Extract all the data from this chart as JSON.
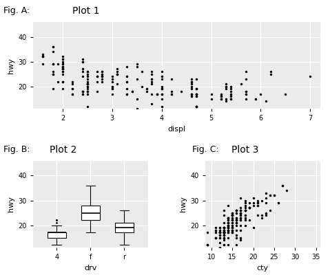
{
  "title_A": "Fig. A:",
  "title_B": "Fig. B:",
  "title_C": "Fig. C:",
  "plot1_title": "Plot 1",
  "plot2_title": "Plot 2",
  "plot3_title": "Plot 3",
  "plot1_xlabel": "displ",
  "plot1_ylabel": "hwy",
  "plot2_xlabel": "drv",
  "plot2_ylabel": "hwy",
  "plot3_xlabel": "cty",
  "plot3_ylabel": "hwy",
  "bg_color": "#EBEBEB",
  "grid_color": "white",
  "point_color": "black",
  "fig_label_fontsize": 9,
  "plot_title_fontsize": 10,
  "axis_label_fontsize": 8,
  "tick_fontsize": 7,
  "displ": [
    1.8,
    1.8,
    2.0,
    2.0,
    2.8,
    2.8,
    3.1,
    1.8,
    1.8,
    2.0,
    2.0,
    2.8,
    2.8,
    3.1,
    3.1,
    2.8,
    3.1,
    4.2,
    5.3,
    5.3,
    5.3,
    5.7,
    6.0,
    5.7,
    5.7,
    6.2,
    6.2,
    7.0,
    5.3,
    5.3,
    5.7,
    6.5,
    2.4,
    2.4,
    3.1,
    3.5,
    3.6,
    2.4,
    3.0,
    3.3,
    3.3,
    3.3,
    3.3,
    3.3,
    3.8,
    3.8,
    3.8,
    4.0,
    3.7,
    3.7,
    3.9,
    3.9,
    4.7,
    4.7,
    4.7,
    5.2,
    5.2,
    3.9,
    4.7,
    4.7,
    4.7,
    5.2,
    5.7,
    5.9,
    4.7,
    4.7,
    4.7,
    4.7,
    4.7,
    4.7,
    5.2,
    5.2,
    5.7,
    5.9,
    4.6,
    5.4,
    5.4,
    4.0,
    4.0,
    4.0,
    4.0,
    4.6,
    5.0,
    4.2,
    4.2,
    4.6,
    4.6,
    4.6,
    5.4,
    5.4,
    3.8,
    3.8,
    4.0,
    4.0,
    4.6,
    4.6,
    4.6,
    4.6,
    5.4,
    1.6,
    1.6,
    1.6,
    1.6,
    1.6,
    1.8,
    1.8,
    1.8,
    2.0,
    2.4,
    2.4,
    2.4,
    2.4,
    2.5,
    2.5,
    3.3,
    2.0,
    2.0,
    2.0,
    2.0,
    2.7,
    2.7,
    2.7,
    3.0,
    3.7,
    4.0,
    4.7,
    4.7,
    4.7,
    5.7,
    6.1,
    4.0,
    4.2,
    4.4,
    4.6,
    5.4,
    5.4,
    5.4,
    4.0,
    4.0,
    4.6,
    5.0,
    2.4,
    2.4,
    2.5,
    2.5,
    3.5,
    3.5,
    3.0,
    3.0,
    3.5,
    3.3,
    3.3,
    4.0,
    5.6,
    3.1,
    3.8,
    3.8,
    3.8,
    5.3,
    2.5,
    2.5,
    2.5,
    2.5,
    2.5,
    2.5,
    2.2,
    2.2,
    2.5,
    2.5,
    2.5,
    2.5,
    2.5,
    2.5,
    2.7,
    2.7,
    3.4,
    3.4,
    4.0,
    4.7,
    2.2,
    2.2,
    2.4,
    2.4,
    3.0,
    3.0,
    3.5,
    2.2,
    2.2,
    2.4,
    2.4,
    3.0,
    3.0,
    3.3,
    1.8,
    2.0,
    2.0,
    2.0,
    2.0,
    2.7,
    1.9,
    2.0,
    2.0,
    2.0,
    2.0,
    2.5,
    2.5,
    2.8,
    2.8,
    1.9,
    2.0,
    2.5,
    2.5,
    1.8,
    1.8,
    2.0,
    2.0,
    2.8,
    2.8,
    3.6
  ],
  "hwy": [
    29,
    29,
    31,
    30,
    26,
    26,
    27,
    26,
    25,
    28,
    27,
    25,
    25,
    25,
    25,
    24,
    25,
    23,
    20,
    15,
    20,
    17,
    17,
    26,
    23,
    26,
    25,
    24,
    19,
    14,
    15,
    17,
    27,
    30,
    26,
    29,
    26,
    24,
    24,
    22,
    22,
    24,
    24,
    17,
    22,
    21,
    23,
    23,
    19,
    18,
    17,
    17,
    19,
    19,
    12,
    17,
    15,
    17,
    17,
    12,
    17,
    16,
    18,
    15,
    16,
    12,
    17,
    17,
    16,
    12,
    15,
    16,
    17,
    15,
    17,
    17,
    18,
    17,
    19,
    17,
    19,
    19,
    17,
    17,
    17,
    16,
    16,
    17,
    15,
    17,
    26,
    25,
    26,
    24,
    21,
    22,
    23,
    22,
    20,
    33,
    32,
    32,
    29,
    32,
    34,
    36,
    36,
    29,
    26,
    27,
    30,
    31,
    26,
    26,
    28,
    26,
    29,
    28,
    27,
    24,
    24,
    24,
    22,
    19,
    20,
    17,
    12,
    19,
    18,
    14,
    15,
    18,
    18,
    20,
    19,
    15,
    16,
    12,
    17,
    17,
    15,
    17,
    17,
    12,
    9,
    11,
    15,
    17,
    23,
    23,
    19,
    17,
    19,
    21,
    21,
    13,
    17,
    23,
    21,
    18,
    17,
    19,
    21,
    23,
    25,
    21,
    19,
    21,
    18,
    20,
    21,
    21,
    21,
    22,
    18,
    18,
    18,
    24,
    23,
    22,
    17,
    18,
    18,
    20,
    20,
    28,
    19,
    17,
    18,
    18,
    19,
    19,
    17,
    29,
    27,
    31,
    32,
    27,
    26,
    29,
    28,
    22,
    22,
    22,
    22,
    24,
    24,
    24,
    22,
    19,
    18,
    20,
    19,
    25,
    25,
    26,
    23,
    22,
    20
  ],
  "drv_4_hwy": [
    19,
    14,
    15,
    17,
    19,
    14,
    15,
    17,
    17,
    12,
    17,
    15,
    17,
    17,
    12,
    17,
    15,
    17,
    17,
    12,
    15,
    16,
    17,
    15,
    17,
    17,
    18,
    15,
    16,
    12,
    17,
    17,
    16,
    12,
    15,
    16,
    17,
    15,
    17,
    17,
    18,
    17,
    19,
    17,
    19,
    19,
    17,
    17,
    17,
    16,
    16,
    17,
    15,
    17,
    17,
    16,
    18,
    15,
    17,
    22,
    21,
    22,
    20,
    19,
    18,
    17,
    17,
    19,
    19,
    12,
    17,
    15,
    17,
    17,
    15,
    17,
    17,
    16,
    12,
    15,
    16,
    17,
    15,
    17,
    17
  ],
  "drv_f_hwy": [
    29,
    29,
    31,
    30,
    26,
    26,
    27,
    26,
    25,
    28,
    27,
    25,
    25,
    25,
    25,
    24,
    25,
    23,
    27,
    30,
    26,
    29,
    26,
    24,
    24,
    22,
    22,
    24,
    24,
    26,
    25,
    26,
    24,
    21,
    22,
    23,
    22,
    33,
    32,
    32,
    29,
    32,
    34,
    36,
    36,
    29,
    26,
    27,
    30,
    31,
    26,
    26,
    28,
    26,
    29,
    28,
    27,
    24,
    24,
    24,
    22,
    26,
    25,
    26,
    23,
    22,
    20,
    24,
    23,
    22,
    17,
    18,
    18,
    20,
    20,
    28,
    19,
    17,
    18,
    18,
    19,
    19,
    17,
    29,
    27,
    31,
    32,
    27,
    26,
    29,
    28,
    22,
    22,
    22,
    22,
    24,
    24,
    24,
    22,
    25,
    25,
    26,
    23,
    22,
    20
  ],
  "drv_r_hwy": [
    20,
    15,
    20,
    17,
    17,
    26,
    23,
    26,
    25,
    24,
    19,
    17,
    19,
    18,
    14,
    15,
    18,
    18,
    20,
    19,
    15,
    16,
    12,
    17,
    17,
    15,
    17,
    23,
    21,
    18,
    17,
    19,
    21,
    23,
    25,
    21,
    19,
    21,
    18,
    20,
    21,
    21,
    21,
    22,
    18,
    18,
    18
  ],
  "cty": [
    18,
    21,
    20,
    21,
    16,
    18,
    18,
    18,
    16,
    20,
    19,
    15,
    17,
    17,
    15,
    15,
    17,
    16,
    14,
    11,
    14,
    13,
    12,
    16,
    15,
    16,
    15,
    15,
    13,
    13,
    13,
    11,
    19,
    22,
    18,
    26,
    16,
    17,
    15,
    17,
    15,
    15,
    15,
    14,
    18,
    14,
    14,
    14,
    13,
    11,
    13,
    12,
    13,
    13,
    9,
    13,
    11,
    13,
    13,
    9,
    13,
    13,
    14,
    11,
    13,
    13,
    13,
    13,
    13,
    13,
    13,
    13,
    13,
    14,
    12,
    13,
    13,
    12,
    13,
    13,
    14,
    12,
    13,
    13,
    13,
    12,
    12,
    12,
    12,
    12,
    13,
    16,
    16,
    15,
    15,
    14,
    14,
    14,
    15,
    23,
    24,
    25,
    26,
    25,
    28,
    27,
    27,
    19,
    18,
    17,
    18,
    17,
    18,
    17,
    18,
    17,
    23,
    21,
    19,
    21,
    23,
    22,
    16,
    20,
    17,
    13,
    14,
    15,
    15,
    17,
    17,
    16,
    17,
    15,
    15,
    12,
    16,
    16,
    13,
    14,
    13,
    13,
    9,
    9,
    12,
    12,
    16,
    15,
    18,
    17,
    13,
    14,
    13,
    14,
    14,
    12,
    13,
    17,
    16,
    14,
    13,
    14,
    16,
    16,
    17,
    16,
    15,
    16,
    15,
    16,
    15,
    14,
    13,
    19,
    15,
    13,
    12,
    13,
    14,
    16,
    15,
    13,
    14,
    14,
    14,
    14,
    11,
    13,
    13,
    12,
    12,
    14,
    15,
    21,
    19,
    23,
    24,
    19,
    17,
    20,
    21,
    16,
    15,
    16,
    15,
    18,
    18,
    17,
    17,
    14,
    14,
    14,
    14,
    23,
    23,
    24,
    22,
    17,
    18
  ],
  "plot1_xlim": [
    1.4,
    7.2
  ],
  "plot1_ylim": [
    11,
    46
  ],
  "plot1_xticks": [
    2,
    3,
    4,
    5,
    6,
    7
  ],
  "plot1_yticks": [
    20,
    30,
    40
  ],
  "plot2_ylim": [
    11,
    46
  ],
  "plot2_yticks": [
    20,
    30,
    40
  ],
  "plot3_xlim": [
    8.5,
    36
  ],
  "plot3_ylim": [
    11,
    46
  ],
  "plot3_xticks": [
    10,
    15,
    20,
    25,
    30,
    35
  ],
  "plot3_yticks": [
    20,
    30,
    40
  ]
}
